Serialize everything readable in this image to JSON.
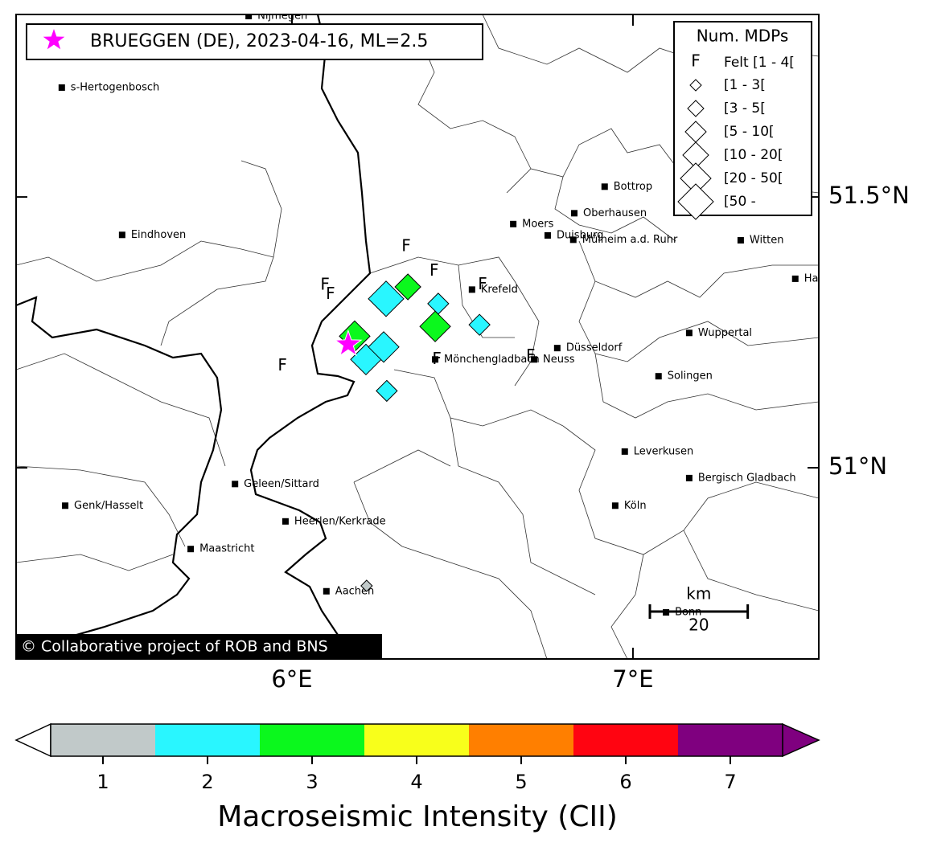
{
  "map": {
    "extent": {
      "lon": [
        5.191,
        7.545
      ],
      "lat": [
        50.647,
        51.837
      ]
    },
    "lon_ticks": [
      {
        "value": 6,
        "label": "6°E"
      },
      {
        "value": 7,
        "label": "7°E"
      }
    ],
    "lat_ticks": [
      {
        "value": 51.5,
        "label": "51.5°N"
      },
      {
        "value": 51,
        "label": "51°N"
      }
    ],
    "event": {
      "label": "BRUEGGEN (DE), 2023-04-16, ML=2.5",
      "lon": 6.165,
      "lat": 51.228,
      "color": "#ff00ff"
    },
    "cities": [
      {
        "name": "Nijmegen",
        "lon": 5.873,
        "lat": 51.834
      },
      {
        "name": "s-Hertogenbosch",
        "lon": 5.325,
        "lat": 51.702
      },
      {
        "name": "Eindhoven",
        "lon": 5.502,
        "lat": 51.43
      },
      {
        "name": "Bottrop",
        "lon": 6.917,
        "lat": 51.519
      },
      {
        "name": "Oberhausen",
        "lon": 6.828,
        "lat": 51.47
      },
      {
        "name": "Moers",
        "lon": 6.649,
        "lat": 51.45
      },
      {
        "name": "Duisburg",
        "lon": 6.75,
        "lat": 51.429
      },
      {
        "name": "Mülheim a.d. Ruhr",
        "lon": 6.825,
        "lat": 51.421
      },
      {
        "name": "Witten",
        "lon": 7.316,
        "lat": 51.42
      },
      {
        "name": "Hagen",
        "lon": 7.476,
        "lat": 51.349
      },
      {
        "name": "Krefeld",
        "lon": 6.528,
        "lat": 51.329
      },
      {
        "name": "Wuppertal",
        "lon": 7.165,
        "lat": 51.249
      },
      {
        "name": "Düsseldorf",
        "lon": 6.778,
        "lat": 51.221
      },
      {
        "name": "Mönchengladbach",
        "lon": 6.42,
        "lat": 51.2
      },
      {
        "name": "Neuss",
        "lon": 6.71,
        "lat": 51.2
      },
      {
        "name": "Solingen",
        "lon": 7.075,
        "lat": 51.169
      },
      {
        "name": "Leverkusen",
        "lon": 6.976,
        "lat": 51.03
      },
      {
        "name": "Bergisch Gladbach",
        "lon": 7.165,
        "lat": 50.981
      },
      {
        "name": "Köln",
        "lon": 6.948,
        "lat": 50.93
      },
      {
        "name": "Geleen/Sittard",
        "lon": 5.833,
        "lat": 50.97
      },
      {
        "name": "Genk/Hasselt",
        "lon": 5.335,
        "lat": 50.93
      },
      {
        "name": "Heerlen/Kerkrade",
        "lon": 5.981,
        "lat": 50.901
      },
      {
        "name": "Maastricht",
        "lon": 5.703,
        "lat": 50.85
      },
      {
        "name": "Aachen",
        "lon": 6.101,
        "lat": 50.772
      },
      {
        "name": "Bonn",
        "lon": 7.097,
        "lat": 50.733
      }
    ],
    "felt": {
      "symbol": "F",
      "points": [
        {
          "lon": 6.335,
          "lat": 51.408
        },
        {
          "lon": 6.417,
          "lat": 51.363
        },
        {
          "lon": 6.097,
          "lat": 51.337
        },
        {
          "lon": 6.113,
          "lat": 51.32
        },
        {
          "lon": 6.559,
          "lat": 51.338
        },
        {
          "lon": 5.972,
          "lat": 51.188
        },
        {
          "lon": 6.425,
          "lat": 51.2
        },
        {
          "lon": 6.7,
          "lat": 51.206
        }
      ]
    },
    "mdps": [
      {
        "lon": 6.184,
        "lat": 51.243,
        "intensity": 3,
        "size_class": 4
      },
      {
        "lon": 6.34,
        "lat": 51.334,
        "intensity": 3,
        "size_class": 3
      },
      {
        "lon": 6.276,
        "lat": 51.312,
        "intensity": 2,
        "size_class": 5
      },
      {
        "lon": 6.429,
        "lat": 51.303,
        "intensity": 2,
        "size_class": 2
      },
      {
        "lon": 6.42,
        "lat": 51.261,
        "intensity": 3,
        "size_class": 4
      },
      {
        "lon": 6.55,
        "lat": 51.264,
        "intensity": 2,
        "size_class": 2
      },
      {
        "lon": 6.217,
        "lat": 51.2,
        "intensity": 2,
        "size_class": 4
      },
      {
        "lon": 6.269,
        "lat": 51.223,
        "intensity": 2,
        "size_class": 4
      },
      {
        "lon": 6.278,
        "lat": 51.142,
        "intensity": 2,
        "size_class": 2
      },
      {
        "lon": 6.219,
        "lat": 50.782,
        "intensity": 1,
        "size_class": 0
      }
    ],
    "legend": {
      "title": "Num. MDPs",
      "felt_label": "Felt [1 - 4[",
      "classes": [
        "[1 - 3[",
        "[3 - 5[",
        "[5 - 10[",
        "[10 - 20[",
        "[20 - 50[",
        "[50 -"
      ]
    },
    "scale_bar": {
      "unit": "km",
      "length": 20
    },
    "copyright": "© Collaborative project of ROB and BNS"
  },
  "colorbar": {
    "label": "Macroseismic Intensity (CII)",
    "ticks": [
      1,
      2,
      3,
      4,
      5,
      6,
      7
    ],
    "colors": [
      "#c1c9c9",
      "#29f6ff",
      "#0bf81d",
      "#f8ff1b",
      "#ff7f00",
      "#ff0411",
      "#7f007f"
    ]
  }
}
